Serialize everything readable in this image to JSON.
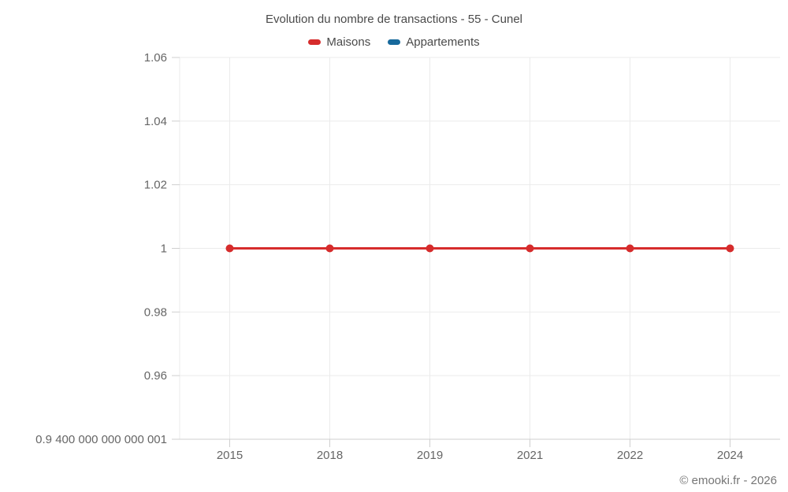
{
  "chart_data": {
    "type": "line",
    "title": "Evolution du nombre de transactions - 55 - Cunel",
    "categories": [
      "2015",
      "2018",
      "2019",
      "2021",
      "2022",
      "2024"
    ],
    "series": [
      {
        "name": "Maisons",
        "color": "#d62c2c",
        "values": [
          1,
          1,
          1,
          1,
          1,
          1
        ]
      },
      {
        "name": "Appartements",
        "color": "#17699c",
        "values": []
      }
    ],
    "xlabel": "",
    "ylabel": "",
    "ylim": [
      0.9400000000000001,
      1.06
    ],
    "y_ticks": [
      {
        "value": 1.06,
        "label": "1.06"
      },
      {
        "value": 1.04,
        "label": "1.04"
      },
      {
        "value": 1.02,
        "label": "1.02"
      },
      {
        "value": 1.0,
        "label": "1"
      },
      {
        "value": 0.98,
        "label": "0.98"
      },
      {
        "value": 0.96,
        "label": "0.96"
      },
      {
        "value": 0.9400000000000001,
        "label": "0.9 400 000 000 000 001"
      }
    ],
    "grid": true,
    "legend_position": "top",
    "marker_radius": 5,
    "line_width": 3,
    "colors": {
      "grid": "#ebebeb",
      "axis": "#cfcfcf",
      "tick_label": "#666666",
      "title_text": "#4a4a4a",
      "footer_text": "#757575"
    },
    "footer": "© emooki.fr - 2026"
  }
}
